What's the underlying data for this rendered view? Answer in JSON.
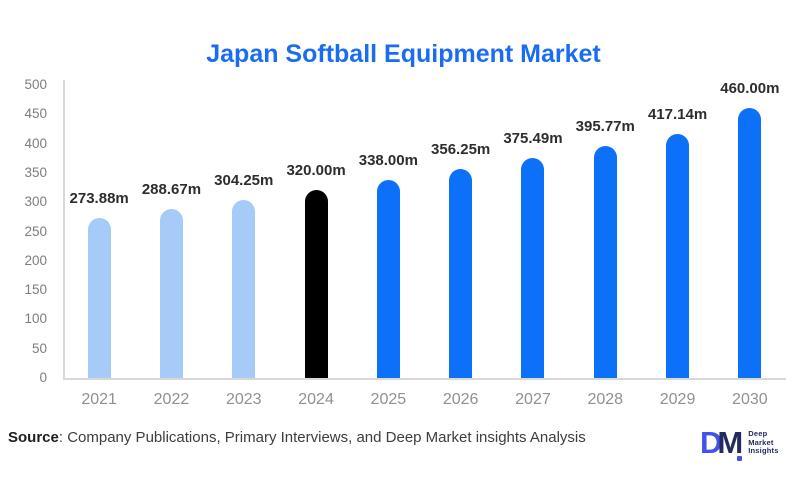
{
  "title": {
    "text": "Japan Softball Equipment Market",
    "color": "#1a6df3"
  },
  "chart_data": {
    "type": "bar",
    "title": "Japan Softball Equipment Market",
    "categories": [
      "2021",
      "2022",
      "2023",
      "2024",
      "2025",
      "2026",
      "2027",
      "2028",
      "2029",
      "2030"
    ],
    "values": [
      273.88,
      288.67,
      304.25,
      320.0,
      338.0,
      356.25,
      375.49,
      395.77,
      417.14,
      460.0
    ],
    "value_labels": [
      "273.88m",
      "288.67m",
      "304.25m",
      "320.00m",
      "338.00m",
      "356.25m",
      "375.49m",
      "395.77m",
      "417.14m",
      "460.00m"
    ],
    "bar_colors": [
      "#a6cbf8",
      "#a6cbf8",
      "#a6cbf8",
      "#000000",
      "#0c70f9",
      "#0c70f9",
      "#0c70f9",
      "#0c70f9",
      "#0c70f9",
      "#0c70f9"
    ],
    "xlabel": "",
    "ylabel": "",
    "ylim": [
      0,
      500
    ],
    "yticks": [
      0,
      50,
      100,
      150,
      200,
      250,
      300,
      350,
      400,
      450,
      500
    ],
    "grid": false,
    "legend": false
  },
  "axis_colors": {
    "ytick_color": "#7d7d7d",
    "xtick_color": "#909090",
    "line_color": "#d8d8d8",
    "value_label_color": "#2d2d2d"
  },
  "footer": {
    "source_label": "Source",
    "source_rest": ": Company Publications, Primary Interviews, and Deep Market insights Analysis"
  },
  "logo": {
    "d": "D",
    "m": "M",
    "d_color": "#4353e9",
    "m_color": "#232a5e",
    "lines": [
      "Deep",
      "Market",
      "Insights"
    ]
  }
}
